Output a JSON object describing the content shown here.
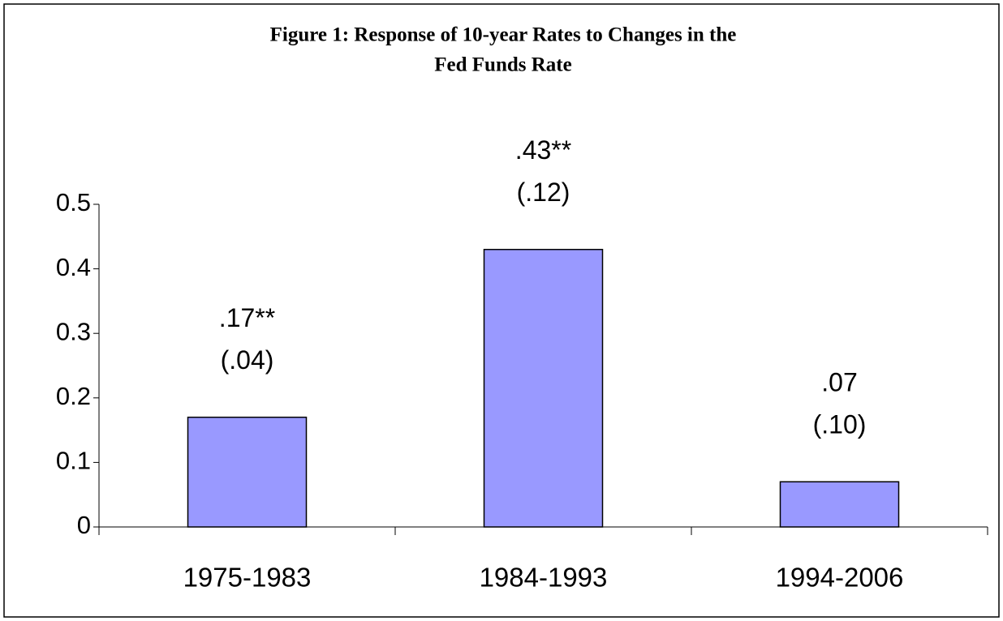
{
  "chart_data": {
    "type": "bar",
    "title": [
      "Figure 1:  Response of 10-year Rates to Changes in the",
      "Fed Funds Rate"
    ],
    "categories": [
      "1975-1983",
      "1984-1993",
      "1994-2006"
    ],
    "values": [
      0.17,
      0.43,
      0.07
    ],
    "value_labels": [
      ".17**",
      ".43**",
      ".07"
    ],
    "errors": [
      0.04,
      0.12,
      0.1
    ],
    "error_labels": [
      "(.04)",
      "(.12)",
      "(.10)"
    ],
    "color": "#9999ff",
    "ylim": [
      0,
      0.5
    ],
    "yticks": [
      0,
      0.1,
      0.2,
      0.3,
      0.4,
      0.5
    ],
    "grid": false
  }
}
